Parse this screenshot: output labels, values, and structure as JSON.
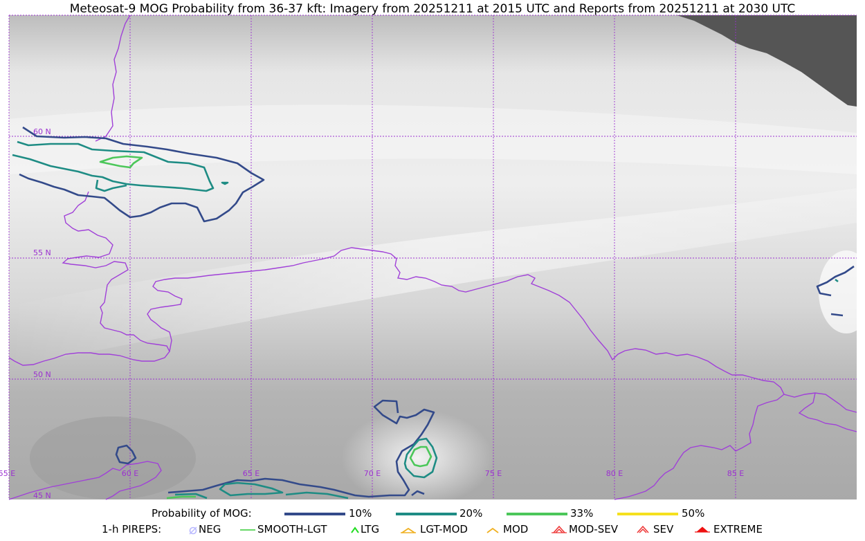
{
  "title": "Meteosat-9 MOG Probability from 36-37 kft: Imagery from 20251211 at 2015 UTC and Reports from 20251211 at 2030 UTC",
  "map": {
    "lat_labels": [
      "60 N",
      "55 N",
      "50 N",
      "45 N"
    ],
    "lon_labels": [
      "55 E",
      "60 E",
      "65 E",
      "70 E",
      "75 E",
      "80 E",
      "85 E"
    ],
    "grid_color": "#9b30d0",
    "border_color": "#a040d8",
    "nodata_color": "#555555"
  },
  "legend": {
    "prob_label": "Probability of MOG:",
    "levels": [
      {
        "label": "10%",
        "color": "#334a8a"
      },
      {
        "label": "20%",
        "color": "#1e8c84"
      },
      {
        "label": "33%",
        "color": "#4cc75a"
      },
      {
        "label": "50%",
        "color": "#f5e01e"
      }
    ],
    "pirep_label": "1-h PIREPS:",
    "pireps": [
      {
        "label": "NEG",
        "icon": "neg-circle-icon",
        "color": "#b8b8ff"
      },
      {
        "label": "SMOOTH-LGT",
        "icon": "smooth-lgt-line-icon",
        "color": "#33cc33"
      },
      {
        "label": "LTG",
        "icon": "ltg-caret-icon",
        "color": "#22dd22"
      },
      {
        "label": "LGT-MOD",
        "icon": "lgt-mod-caret-icon",
        "color": "#f0b020"
      },
      {
        "label": "MOD",
        "icon": "mod-caret-icon",
        "color": "#f0b020"
      },
      {
        "label": "MOD-SEV",
        "icon": "mod-sev-caret-icon",
        "color": "#ee3333"
      },
      {
        "label": "SEV",
        "icon": "sev-caret-icon",
        "color": "#ee3333"
      },
      {
        "label": "EXTREME",
        "icon": "extreme-caret-icon",
        "color": "#ee1111"
      }
    ]
  }
}
